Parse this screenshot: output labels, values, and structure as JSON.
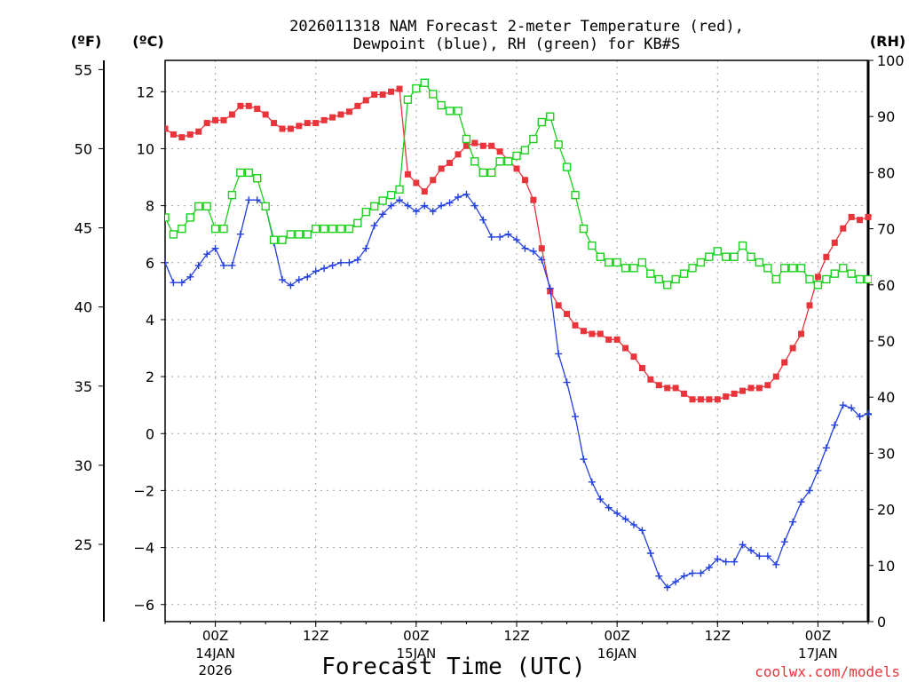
{
  "colors": {
    "temp": "#e8343a",
    "dew": "#2340e0",
    "rh": "#1ecf1e"
  },
  "chart_data": {
    "type": "line",
    "title": "2026011318 NAM Forecast 2-meter Temperature (red), Dewpoint (blue), RH (green) for KB#S",
    "title_lines": [
      "2026011318 NAM Forecast 2-meter Temperature (red),",
      "Dewpoint (blue), RH (green) for KB#S"
    ],
    "xlabel": "Forecast Time (UTC)",
    "credit": "coolwx.com/models",
    "axes": {
      "left_f": {
        "unit_label": "(ºF)",
        "ticks": [
          25,
          30,
          35,
          40,
          45,
          50,
          55
        ]
      },
      "left_c": {
        "unit_label": "(ºC)",
        "range": [
          -6.6,
          13.1
        ],
        "ticks": [
          -6,
          -4,
          -2,
          0,
          2,
          4,
          6,
          8,
          10,
          12
        ]
      },
      "right_rh": {
        "unit_label": "(RH)",
        "range": [
          0,
          100
        ],
        "ticks": [
          0,
          10,
          20,
          30,
          40,
          50,
          60,
          70,
          80,
          90,
          100
        ]
      }
    },
    "x_range_hours": [
      0,
      84
    ],
    "x_ticks": [
      {
        "hour": 6,
        "line1": "00Z",
        "line2": "14JAN",
        "line3": "2026"
      },
      {
        "hour": 18,
        "line1": "12Z",
        "line2": "",
        "line3": ""
      },
      {
        "hour": 30,
        "line1": "00Z",
        "line2": "15JAN",
        "line3": ""
      },
      {
        "hour": 42,
        "line1": "12Z",
        "line2": "",
        "line3": ""
      },
      {
        "hour": 54,
        "line1": "00Z",
        "line2": "16JAN",
        "line3": ""
      },
      {
        "hour": 66,
        "line1": "12Z",
        "line2": "",
        "line3": ""
      },
      {
        "hour": 78,
        "line1": "00Z",
        "line2": "17JAN",
        "line3": ""
      }
    ],
    "series": [
      {
        "name": "Temperature (°C)",
        "color": "temp",
        "axis": "left_c",
        "marker": "filled-square",
        "values": [
          10.7,
          10.5,
          10.4,
          10.5,
          10.6,
          10.9,
          11.0,
          11.0,
          11.2,
          11.5,
          11.5,
          11.4,
          11.2,
          10.9,
          10.7,
          10.7,
          10.8,
          10.9,
          10.9,
          11.0,
          11.1,
          11.2,
          11.3,
          11.5,
          11.7,
          11.9,
          11.9,
          12.0,
          12.1,
          9.1,
          8.8,
          8.5,
          8.9,
          9.3,
          9.5,
          9.8,
          10.1,
          10.2,
          10.1,
          10.1,
          9.9,
          9.6,
          9.3,
          8.9,
          8.2,
          6.5,
          5.0,
          4.5,
          4.2,
          3.8,
          3.6,
          3.5,
          3.5,
          3.3,
          3.3,
          3.0,
          2.7,
          2.3,
          1.9,
          1.7,
          1.6,
          1.6,
          1.4,
          1.2,
          1.2,
          1.2,
          1.2,
          1.3,
          1.4,
          1.5,
          1.6,
          1.6,
          1.7,
          2.0,
          2.5,
          3.0,
          3.5,
          4.5,
          5.5,
          6.2,
          6.7,
          7.2,
          7.6,
          7.5,
          7.6,
          7.7
        ]
      },
      {
        "name": "Dewpoint (°C)",
        "color": "dew",
        "axis": "left_c",
        "marker": "plus",
        "values": [
          6.0,
          5.3,
          5.3,
          5.5,
          5.9,
          6.3,
          6.5,
          5.9,
          5.9,
          7.0,
          8.2,
          8.2,
          8.0,
          6.7,
          5.4,
          5.2,
          5.4,
          5.5,
          5.7,
          5.8,
          5.9,
          6.0,
          6.0,
          6.1,
          6.5,
          7.3,
          7.7,
          8.0,
          8.2,
          8.0,
          7.8,
          8.0,
          7.8,
          8.0,
          8.1,
          8.3,
          8.4,
          8.0,
          7.5,
          6.9,
          6.9,
          7.0,
          6.8,
          6.5,
          6.4,
          6.1,
          5.1,
          2.8,
          1.8,
          0.6,
          -0.9,
          -1.7,
          -2.3,
          -2.6,
          -2.8,
          -3.0,
          -3.2,
          -3.4,
          -4.2,
          -5.0,
          -5.4,
          -5.2,
          -5.0,
          -4.9,
          -4.9,
          -4.7,
          -4.4,
          -4.5,
          -4.5,
          -3.9,
          -4.1,
          -4.3,
          -4.3,
          -4.6,
          -3.8,
          -3.1,
          -2.4,
          -2.0,
          -1.3,
          -0.5,
          0.3,
          1.0,
          0.9,
          0.6,
          0.7,
          0.6
        ]
      },
      {
        "name": "RH (%)",
        "color": "rh",
        "axis": "right_rh",
        "marker": "open-square",
        "values": [
          72,
          69,
          70,
          72,
          74,
          74,
          70,
          70,
          76,
          80,
          80,
          79,
          74,
          68,
          68,
          69,
          69,
          69,
          70,
          70,
          70,
          70,
          70,
          71,
          73,
          74,
          75,
          76,
          77,
          93,
          95,
          96,
          94,
          92,
          91,
          91,
          86,
          82,
          80,
          80,
          82,
          82,
          83,
          84,
          86,
          89,
          90,
          85,
          81,
          76,
          70,
          67,
          65,
          64,
          64,
          63,
          63,
          64,
          62,
          61,
          60,
          61,
          62,
          63,
          64,
          65,
          66,
          65,
          65,
          67,
          65,
          64,
          63,
          61,
          63,
          63,
          63,
          61,
          60,
          61,
          62,
          63,
          62,
          61,
          61,
          60
        ]
      }
    ]
  }
}
